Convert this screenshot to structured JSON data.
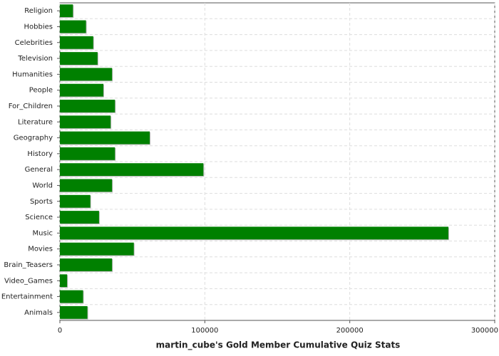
{
  "chart_data": {
    "type": "bar",
    "orientation": "horizontal",
    "title": "martin_cube's Gold Member Cumulative Quiz Stats",
    "categories": [
      "Religion",
      "Hobbies",
      "Celebrities",
      "Television",
      "Humanities",
      "People",
      "For_Children",
      "Literature",
      "Geography",
      "History",
      "General",
      "World",
      "Sports",
      "Science",
      "Music",
      "Movies",
      "Brain_Teasers",
      "Video_Games",
      "Entertainment",
      "Animals"
    ],
    "values": [
      9000,
      18000,
      23000,
      26000,
      36000,
      30000,
      38000,
      35000,
      62000,
      38000,
      99000,
      36000,
      21000,
      27000,
      268000,
      51000,
      36000,
      5000,
      16000,
      19000
    ],
    "color": "#008000",
    "xlim": [
      0,
      300000
    ],
    "xticks": [
      0,
      100000,
      200000,
      300000
    ],
    "grid": true
  }
}
